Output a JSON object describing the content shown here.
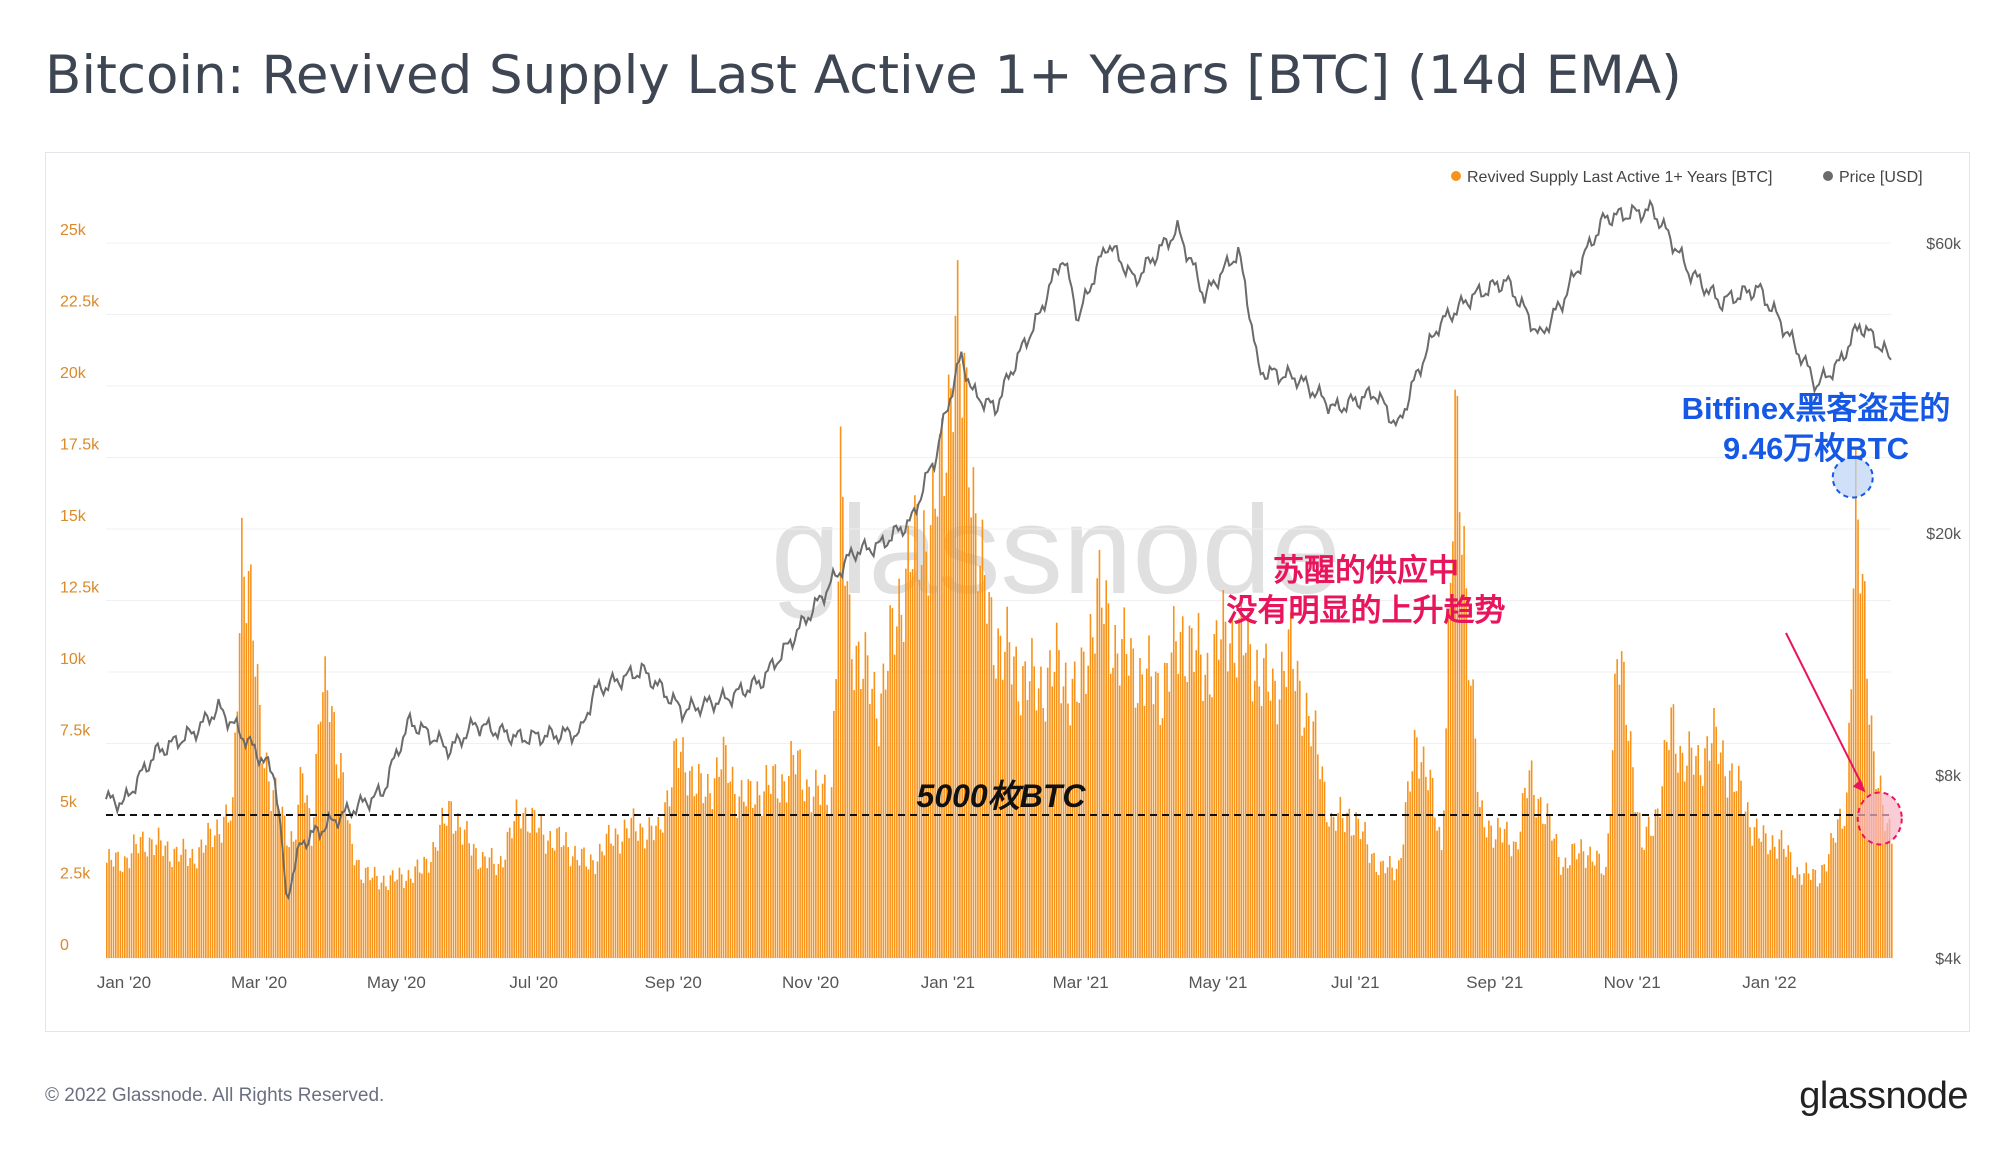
{
  "title": "Bitcoin: Revived Supply Last Active 1+ Years [BTC] (14d EMA)",
  "footer": {
    "copyright": "© 2022 Glassnode. All Rights Reserved.",
    "logo": "glassnode"
  },
  "colors": {
    "supply": "#f7931a",
    "price": "#6b6b6b",
    "threshold": "#111111",
    "bitfinex_text": "#1558e6",
    "trend_text": "#e8145c"
  },
  "chart_data": {
    "type": "bar",
    "title": "Bitcoin: Revived Supply Last Active 1+ Years [BTC] (14d EMA)",
    "watermark": "glassnode",
    "legend": {
      "position": "top-right",
      "items": [
        "Revived Supply Last Active 1+ Years [BTC]",
        "Price [USD]"
      ]
    },
    "x_range": [
      "2019-12-24",
      "2022-02-24"
    ],
    "x_ticks": [
      {
        "date": "2020-01-01",
        "label": "Jan '20"
      },
      {
        "date": "2020-03-01",
        "label": "Mar '20"
      },
      {
        "date": "2020-05-01",
        "label": "May '20"
      },
      {
        "date": "2020-07-01",
        "label": "Jul '20"
      },
      {
        "date": "2020-09-01",
        "label": "Sep '20"
      },
      {
        "date": "2020-11-01",
        "label": "Nov '20"
      },
      {
        "date": "2021-01-01",
        "label": "Jan '21"
      },
      {
        "date": "2021-03-01",
        "label": "Mar '21"
      },
      {
        "date": "2021-05-01",
        "label": "May '21"
      },
      {
        "date": "2021-07-01",
        "label": "Jul '21"
      },
      {
        "date": "2021-09-01",
        "label": "Sep '21"
      },
      {
        "date": "2021-11-01",
        "label": "Nov '21"
      },
      {
        "date": "2022-01-01",
        "label": "Jan '22"
      }
    ],
    "y_left": {
      "range": [
        0,
        25000
      ],
      "ticks": [
        {
          "v": 0,
          "label": "0"
        },
        {
          "v": 2500,
          "label": "2.5k"
        },
        {
          "v": 5000,
          "label": "5k"
        },
        {
          "v": 7500,
          "label": "7.5k"
        },
        {
          "v": 10000,
          "label": "10k"
        },
        {
          "v": 12500,
          "label": "12.5k"
        },
        {
          "v": 15000,
          "label": "15k"
        },
        {
          "v": 17500,
          "label": "17.5k"
        },
        {
          "v": 20000,
          "label": "20k"
        },
        {
          "v": 22500,
          "label": "22.5k"
        },
        {
          "v": 25000,
          "label": "25k"
        }
      ]
    },
    "y_right": {
      "scale": "log",
      "range": [
        4000,
        60000
      ],
      "ticks": [
        {
          "v": 4000,
          "label": "$4k"
        },
        {
          "v": 8000,
          "label": "$8k"
        },
        {
          "v": 20000,
          "label": "$20k"
        },
        {
          "v": 60000,
          "label": "$60k"
        }
      ]
    },
    "series": [
      {
        "name": "Revived Supply Last Active 1+ Years [BTC]",
        "type": "bar",
        "axis": "left",
        "points": [
          [
            "2019-12-24",
            3700
          ],
          [
            "2020-01-01",
            3800
          ],
          [
            "2020-01-10",
            4600
          ],
          [
            "2020-01-20",
            4200
          ],
          [
            "2020-01-30",
            3900
          ],
          [
            "2020-02-05",
            4300
          ],
          [
            "2020-02-12",
            5200
          ],
          [
            "2020-02-18",
            5500
          ],
          [
            "2020-02-22",
            16200
          ],
          [
            "2020-02-25",
            14500
          ],
          [
            "2020-03-01",
            9200
          ],
          [
            "2020-03-06",
            6500
          ],
          [
            "2020-03-12",
            5200
          ],
          [
            "2020-03-16",
            4500
          ],
          [
            "2020-03-20",
            7000
          ],
          [
            "2020-03-24",
            5000
          ],
          [
            "2020-03-28",
            10000
          ],
          [
            "2020-04-01",
            10100
          ],
          [
            "2020-04-06",
            7500
          ],
          [
            "2020-04-10",
            4500
          ],
          [
            "2020-04-15",
            3400
          ],
          [
            "2020-04-20",
            3100
          ],
          [
            "2020-04-28",
            3000
          ],
          [
            "2020-05-05",
            3200
          ],
          [
            "2020-05-12",
            3400
          ],
          [
            "2020-05-18",
            4400
          ],
          [
            "2020-05-25",
            5900
          ],
          [
            "2020-05-30",
            4800
          ],
          [
            "2020-06-08",
            3800
          ],
          [
            "2020-06-15",
            3600
          ],
          [
            "2020-06-25",
            5800
          ],
          [
            "2020-07-05",
            4800
          ],
          [
            "2020-07-15",
            4400
          ],
          [
            "2020-07-25",
            3600
          ],
          [
            "2020-08-05",
            4700
          ],
          [
            "2020-08-15",
            5100
          ],
          [
            "2020-08-25",
            4800
          ],
          [
            "2020-09-02",
            7900
          ],
          [
            "2020-09-08",
            7300
          ],
          [
            "2020-09-15",
            6200
          ],
          [
            "2020-09-22",
            7800
          ],
          [
            "2020-09-28",
            6600
          ],
          [
            "2020-10-05",
            6100
          ],
          [
            "2020-10-12",
            6800
          ],
          [
            "2020-10-18",
            6600
          ],
          [
            "2020-10-24",
            7700
          ],
          [
            "2020-10-30",
            6700
          ],
          [
            "2020-11-05",
            6300
          ],
          [
            "2020-11-10",
            6500
          ],
          [
            "2020-11-14",
            18000
          ],
          [
            "2020-11-18",
            12800
          ],
          [
            "2020-11-24",
            11200
          ],
          [
            "2020-12-01",
            9800
          ],
          [
            "2020-12-08",
            12800
          ],
          [
            "2020-12-13",
            15100
          ],
          [
            "2020-12-18",
            16000
          ],
          [
            "2020-12-24",
            16800
          ],
          [
            "2020-12-28",
            18200
          ],
          [
            "2021-01-01",
            21600
          ],
          [
            "2021-01-04",
            24900
          ],
          [
            "2021-01-06",
            22600
          ],
          [
            "2021-01-10",
            20400
          ],
          [
            "2021-01-15",
            15200
          ],
          [
            "2021-01-20",
            12900
          ],
          [
            "2021-01-25",
            12000
          ],
          [
            "2021-02-01",
            11100
          ],
          [
            "2021-02-10",
            10500
          ],
          [
            "2021-02-18",
            11300
          ],
          [
            "2021-02-28",
            10100
          ],
          [
            "2021-03-08",
            14200
          ],
          [
            "2021-03-15",
            12400
          ],
          [
            "2021-03-25",
            11200
          ],
          [
            "2021-04-05",
            10400
          ],
          [
            "2021-04-15",
            12600
          ],
          [
            "2021-04-25",
            11100
          ],
          [
            "2021-05-05",
            12800
          ],
          [
            "2021-05-15",
            11800
          ],
          [
            "2021-05-25",
            10200
          ],
          [
            "2021-06-01",
            11900
          ],
          [
            "2021-06-10",
            9300
          ],
          [
            "2021-06-15",
            7600
          ],
          [
            "2021-06-20",
            5200
          ],
          [
            "2021-06-28",
            5600
          ],
          [
            "2021-07-05",
            4600
          ],
          [
            "2021-07-12",
            3400
          ],
          [
            "2021-07-20",
            3600
          ],
          [
            "2021-07-28",
            8600
          ],
          [
            "2021-08-02",
            7100
          ],
          [
            "2021-08-08",
            4200
          ],
          [
            "2021-08-14",
            20100
          ],
          [
            "2021-08-18",
            15800
          ],
          [
            "2021-08-25",
            5400
          ],
          [
            "2021-09-05",
            4700
          ],
          [
            "2021-09-10",
            4400
          ],
          [
            "2021-09-16",
            7000
          ],
          [
            "2021-09-22",
            5800
          ],
          [
            "2021-10-01",
            3600
          ],
          [
            "2021-10-10",
            4300
          ],
          [
            "2021-10-20",
            3300
          ],
          [
            "2021-10-25",
            11700
          ],
          [
            "2021-10-30",
            9200
          ],
          [
            "2021-11-05",
            4200
          ],
          [
            "2021-11-12",
            5800
          ],
          [
            "2021-11-18",
            9100
          ],
          [
            "2021-11-23",
            7800
          ],
          [
            "2021-11-30",
            7500
          ],
          [
            "2021-12-06",
            8600
          ],
          [
            "2021-12-12",
            7600
          ],
          [
            "2021-12-18",
            6500
          ],
          [
            "2021-12-24",
            5200
          ],
          [
            "2021-12-30",
            4400
          ],
          [
            "2022-01-05",
            4600
          ],
          [
            "2022-01-12",
            3400
          ],
          [
            "2022-01-22",
            3100
          ],
          [
            "2022-01-28",
            4200
          ],
          [
            "2022-02-04",
            6200
          ],
          [
            "2022-02-08",
            17000
          ],
          [
            "2022-02-12",
            13600
          ],
          [
            "2022-02-16",
            7600
          ],
          [
            "2022-02-20",
            5600
          ],
          [
            "2022-02-24",
            4900
          ]
        ]
      },
      {
        "name": "Price [USD]",
        "type": "line",
        "axis": "right",
        "points": [
          [
            "2019-12-24",
            7300
          ],
          [
            "2020-01-01",
            7200
          ],
          [
            "2020-01-15",
            8700
          ],
          [
            "2020-02-01",
            9400
          ],
          [
            "2020-02-12",
            10300
          ],
          [
            "2020-02-28",
            8800
          ],
          [
            "2020-03-08",
            8000
          ],
          [
            "2020-03-13",
            5000
          ],
          [
            "2020-03-20",
            6200
          ],
          [
            "2020-04-05",
            6800
          ],
          [
            "2020-04-25",
            7500
          ],
          [
            "2020-05-07",
            9800
          ],
          [
            "2020-05-25",
            8800
          ],
          [
            "2020-06-05",
            9700
          ],
          [
            "2020-06-25",
            9200
          ],
          [
            "2020-07-22",
            9400
          ],
          [
            "2020-07-28",
            11000
          ],
          [
            "2020-08-18",
            11900
          ],
          [
            "2020-09-05",
            10200
          ],
          [
            "2020-09-25",
            10700
          ],
          [
            "2020-10-10",
            11400
          ],
          [
            "2020-10-21",
            12900
          ],
          [
            "2020-11-05",
            15500
          ],
          [
            "2020-11-20",
            18600
          ],
          [
            "2020-12-02",
            19100
          ],
          [
            "2020-12-16",
            21000
          ],
          [
            "2020-12-27",
            27000
          ],
          [
            "2021-01-07",
            39000
          ],
          [
            "2021-01-12",
            34000
          ],
          [
            "2021-01-22",
            32000
          ],
          [
            "2021-02-10",
            45000
          ],
          [
            "2021-02-21",
            57000
          ],
          [
            "2021-02-28",
            45000
          ],
          [
            "2021-03-13",
            60000
          ],
          [
            "2021-03-25",
            52000
          ],
          [
            "2021-04-13",
            63000
          ],
          [
            "2021-04-25",
            49000
          ],
          [
            "2021-05-10",
            58000
          ],
          [
            "2021-05-19",
            37000
          ],
          [
            "2021-06-05",
            36000
          ],
          [
            "2021-06-22",
            32000
          ],
          [
            "2021-07-10",
            34000
          ],
          [
            "2021-07-20",
            29800
          ],
          [
            "2021-08-07",
            44000
          ],
          [
            "2021-08-22",
            49000
          ],
          [
            "2021-09-06",
            52000
          ],
          [
            "2021-09-21",
            42000
          ],
          [
            "2021-10-01",
            48000
          ],
          [
            "2021-10-20",
            66000
          ],
          [
            "2021-11-10",
            68000
          ],
          [
            "2021-11-26",
            54000
          ],
          [
            "2021-12-10",
            48000
          ],
          [
            "2021-12-27",
            50500
          ],
          [
            "2022-01-10",
            42000
          ],
          [
            "2022-01-22",
            35000
          ],
          [
            "2022-02-01",
            38000
          ],
          [
            "2022-02-10",
            44000
          ],
          [
            "2022-02-16",
            42000
          ],
          [
            "2022-02-24",
            38500
          ]
        ]
      }
    ],
    "threshold": {
      "value": 5000,
      "label": "5000枚BTC"
    },
    "annotations": [
      {
        "id": "bitfinex",
        "lines": [
          "Bitfinex黑客盗走的",
          "9.46万枚BTC"
        ],
        "date": "2022-02-07",
        "value": 16800
      },
      {
        "id": "trend",
        "lines": [
          "苏醒的供应中",
          "没有明显的上升趋势"
        ],
        "date": "2022-02-19",
        "value": 4600
      }
    ]
  }
}
